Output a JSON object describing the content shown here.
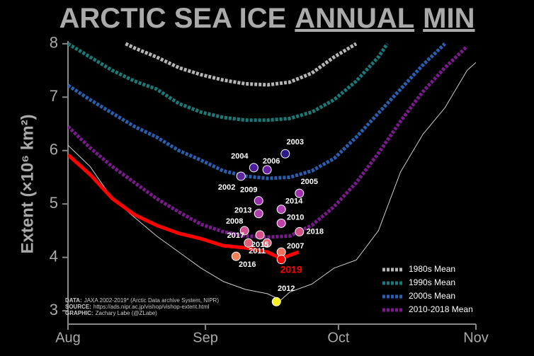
{
  "chart_data": {
    "type": "line",
    "title_parts": [
      "ARCTIC SEA ICE",
      "ANNUAL",
      "MIN"
    ],
    "y_label": "Extent (×10⁶ km²)",
    "xlim": [
      0,
      92
    ],
    "xticks": [
      {
        "value": 0,
        "label": "Aug"
      },
      {
        "value": 31,
        "label": "Sep"
      },
      {
        "value": 61,
        "label": "Oct"
      },
      {
        "value": 92,
        "label": "Nov"
      }
    ],
    "ylim": [
      2.75,
      8.05
    ],
    "yticks": [
      3,
      4,
      5,
      6,
      7,
      8
    ],
    "series": [
      {
        "name": "1980s Mean",
        "color": "#b5b5b5",
        "dashed": true,
        "x": [
          13,
          15,
          20,
          25,
          30,
          35,
          40,
          45,
          50,
          55,
          60,
          65
        ],
        "values": [
          8.0,
          7.92,
          7.75,
          7.55,
          7.42,
          7.32,
          7.25,
          7.23,
          7.28,
          7.45,
          7.75,
          8.0
        ]
      },
      {
        "name": "1990s Mean",
        "color": "#1a7a78",
        "dashed": true,
        "x": [
          0,
          5,
          10,
          15,
          20,
          25,
          30,
          35,
          40,
          45,
          50,
          55,
          60,
          65,
          70,
          72
        ],
        "values": [
          8.0,
          7.75,
          7.5,
          7.3,
          7.15,
          6.88,
          6.72,
          6.62,
          6.57,
          6.57,
          6.6,
          6.72,
          6.95,
          7.3,
          7.75,
          8.0
        ]
      },
      {
        "name": "2000s Mean",
        "color": "#2a5fb0",
        "dashed": true,
        "x": [
          0,
          5,
          10,
          15,
          20,
          25,
          30,
          35,
          40,
          45,
          50,
          55,
          60,
          65,
          70,
          75,
          80,
          85
        ],
        "values": [
          7.22,
          6.95,
          6.7,
          6.45,
          6.25,
          6.0,
          5.82,
          5.62,
          5.52,
          5.48,
          5.5,
          5.62,
          5.85,
          6.25,
          6.7,
          7.15,
          7.6,
          8.0
        ]
      },
      {
        "name": "2010-2018 Mean",
        "color": "#7a1a8c",
        "dashed": true,
        "x": [
          0,
          5,
          10,
          15,
          20,
          25,
          30,
          35,
          40,
          45,
          50,
          55,
          60,
          65,
          70,
          75,
          80,
          85,
          90
        ],
        "values": [
          6.45,
          6.05,
          5.7,
          5.4,
          5.1,
          4.85,
          4.62,
          4.48,
          4.4,
          4.38,
          4.4,
          4.6,
          4.95,
          5.4,
          5.95,
          6.55,
          7.1,
          7.55,
          7.95
        ]
      },
      {
        "color": "#cfcfcf",
        "dashed": false,
        "width": 1,
        "x": [
          0,
          5,
          10,
          15,
          20,
          25,
          30,
          35,
          40,
          45,
          48,
          50,
          55,
          60,
          65,
          70,
          75,
          80,
          85,
          90,
          92
        ],
        "values": [
          6.1,
          5.7,
          5.1,
          4.75,
          4.4,
          4.1,
          3.8,
          3.55,
          3.4,
          3.32,
          3.2,
          3.35,
          3.5,
          3.8,
          3.95,
          4.5,
          5.6,
          6.3,
          6.8,
          7.5,
          7.65
        ]
      },
      {
        "color": "#ff0000",
        "dashed": false,
        "width": 5,
        "x": [
          0,
          5,
          10,
          15,
          20,
          25,
          30,
          35,
          40,
          45,
          48,
          52
        ],
        "values": [
          5.92,
          5.55,
          5.1,
          4.8,
          4.6,
          4.45,
          4.35,
          4.22,
          4.18,
          4.1,
          3.98,
          4.1
        ]
      }
    ],
    "points": [
      {
        "label": "2002",
        "x": 39.0,
        "y": 5.52,
        "color": "#5b2a9a"
      },
      {
        "label": "2003",
        "x": 49.0,
        "y": 5.94,
        "color": "#2a1a8a"
      },
      {
        "label": "2004",
        "x": 41.9,
        "y": 5.68,
        "color": "#4a1aa0"
      },
      {
        "label": "2005",
        "x": 52.2,
        "y": 5.2,
        "color": "#a030b0"
      },
      {
        "label": "2006",
        "x": 44.9,
        "y": 5.64,
        "color": "#6a20a8"
      },
      {
        "label": "2007",
        "x": 48.1,
        "y": 4.1,
        "color": "#f07060"
      },
      {
        "label": "2008",
        "x": 39.8,
        "y": 4.5,
        "color": "#d05090"
      },
      {
        "label": "2009",
        "x": 43.0,
        "y": 5.06,
        "color": "#9a30b0"
      },
      {
        "label": "2010",
        "x": 48.1,
        "y": 4.64,
        "color": "#c040a8"
      },
      {
        "label": "2011",
        "x": 44.9,
        "y": 4.27,
        "color": "#e86070"
      },
      {
        "label": "2012",
        "x": 47.0,
        "y": 3.17,
        "color": "#ffee20"
      },
      {
        "label": "2013",
        "x": 43.0,
        "y": 4.82,
        "color": "#b040b0"
      },
      {
        "label": "2014",
        "x": 48.1,
        "y": 4.9,
        "color": "#b040b0"
      },
      {
        "label": "2015",
        "x": 43.3,
        "y": 4.42,
        "color": "#d85088"
      },
      {
        "label": "2016",
        "x": 37.9,
        "y": 4.02,
        "color": "#f08058"
      },
      {
        "label": "2017",
        "x": 40.7,
        "y": 4.27,
        "color": "#e06078"
      },
      {
        "label": "2018",
        "x": 52.2,
        "y": 4.48,
        "color": "#d85088"
      },
      {
        "label": "2019",
        "x": 48.1,
        "y": 3.96,
        "color": "#ff0000",
        "highlight": true
      }
    ],
    "notes": [
      {
        "label": "DATA:",
        "text": "JAXA 2002-2019* (Arctic Data archive System, NIPR)"
      },
      {
        "label": "SOURCE:",
        "text": "https://ads.nipr.ac.jp/vishop/vishop-extent.html"
      },
      {
        "label": "GRAPHIC:",
        "text": "Zachary Labe (@ZLabe)"
      }
    ],
    "legend": "lower right"
  }
}
